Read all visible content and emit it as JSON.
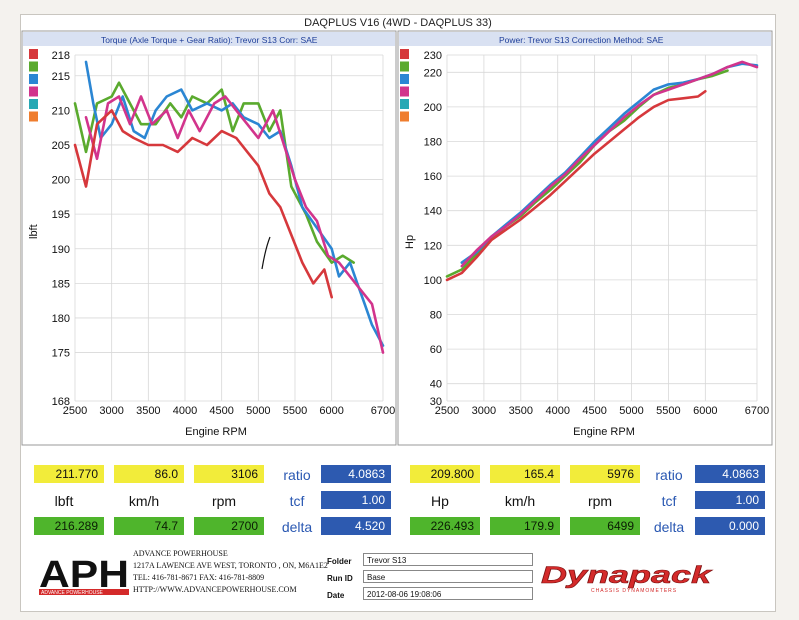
{
  "page_title": "DAQPLUS V16 (4WD - DAQPLUS 33)",
  "colors": {
    "run1": "#d6383c",
    "run2": "#5aaa2e",
    "run3": "#2b86d3",
    "run4": "#d2348c",
    "run5": "#27a8b4",
    "run6": "#ef7d2e"
  },
  "chart_data": [
    {
      "type": "line",
      "title": "Torque (Axle Torque + Gear Ratio): Trevor S13     Corr: SAE",
      "xlabel": "Engine RPM",
      "ylabel": "lbft",
      "xlim": [
        2500,
        6700
      ],
      "ylim": [
        168,
        218
      ],
      "x_ticks": [
        2500,
        3000,
        3500,
        4000,
        4500,
        5000,
        5500,
        6000,
        6700
      ],
      "y_ticks": [
        168,
        175,
        180,
        185,
        190,
        195,
        200,
        205,
        210,
        215,
        218
      ],
      "grid": true,
      "legend": "left swatches",
      "series": [
        {
          "color": "#5aaa2e",
          "points": [
            [
              2500,
              211
            ],
            [
              2650,
              204
            ],
            [
              2800,
              211
            ],
            [
              3000,
              212
            ],
            [
              3100,
              214
            ],
            [
              3200,
              212
            ],
            [
              3400,
              208
            ],
            [
              3600,
              208
            ],
            [
              3800,
              211
            ],
            [
              3950,
              209
            ],
            [
              4100,
              212
            ],
            [
              4300,
              211
            ],
            [
              4500,
              213
            ],
            [
              4650,
              207
            ],
            [
              4800,
              211
            ],
            [
              5000,
              211
            ],
            [
              5150,
              207
            ],
            [
              5300,
              210
            ],
            [
              5450,
              199
            ],
            [
              5650,
              195
            ],
            [
              5800,
              191
            ],
            [
              6000,
              188
            ],
            [
              6150,
              189
            ],
            [
              6300,
              188
            ]
          ]
        },
        {
          "color": "#2b86d3",
          "points": [
            [
              2650,
              217
            ],
            [
              2750,
              211
            ],
            [
              2850,
              206
            ],
            [
              3000,
              208
            ],
            [
              3150,
              212
            ],
            [
              3300,
              207
            ],
            [
              3450,
              206
            ],
            [
              3600,
              210
            ],
            [
              3750,
              212
            ],
            [
              3950,
              213
            ],
            [
              4100,
              210
            ],
            [
              4300,
              211
            ],
            [
              4500,
              210
            ],
            [
              4650,
              211
            ],
            [
              4800,
              209
            ],
            [
              5000,
              208
            ],
            [
              5150,
              206
            ],
            [
              5300,
              207
            ],
            [
              5450,
              202
            ],
            [
              5600,
              196
            ],
            [
              5800,
              193
            ],
            [
              6000,
              190
            ],
            [
              6100,
              186
            ],
            [
              6250,
              188
            ],
            [
              6350,
              185
            ],
            [
              6450,
              182
            ],
            [
              6550,
              179
            ],
            [
              6700,
              176
            ]
          ]
        },
        {
          "color": "#d2348c",
          "points": [
            [
              2650,
              209
            ],
            [
              2800,
              203
            ],
            [
              2950,
              211
            ],
            [
              3100,
              212
            ],
            [
              3250,
              208
            ],
            [
              3400,
              212
            ],
            [
              3550,
              208
            ],
            [
              3750,
              210
            ],
            [
              3900,
              206
            ],
            [
              4050,
              210
            ],
            [
              4200,
              207
            ],
            [
              4400,
              211
            ],
            [
              4550,
              212
            ],
            [
              4700,
              210
            ],
            [
              4850,
              208
            ],
            [
              5000,
              206
            ],
            [
              5200,
              210
            ],
            [
              5350,
              205
            ],
            [
              5500,
              200
            ],
            [
              5650,
              196
            ],
            [
              5800,
              194
            ],
            [
              5950,
              189
            ],
            [
              6100,
              188
            ],
            [
              6250,
              186
            ],
            [
              6400,
              184
            ],
            [
              6550,
              182
            ],
            [
              6700,
              175
            ]
          ]
        },
        {
          "color": "#d6383c",
          "points": [
            [
              2500,
              205
            ],
            [
              2650,
              199
            ],
            [
              2800,
              208
            ],
            [
              3000,
              210
            ],
            [
              3150,
              207
            ],
            [
              3300,
              206
            ],
            [
              3500,
              205
            ],
            [
              3700,
              205
            ],
            [
              3900,
              204
            ],
            [
              4100,
              206
            ],
            [
              4300,
              205
            ],
            [
              4500,
              207
            ],
            [
              4700,
              206
            ],
            [
              4850,
              204
            ],
            [
              5000,
              202
            ],
            [
              5150,
              198
            ],
            [
              5300,
              196
            ],
            [
              5450,
              192
            ],
            [
              5600,
              188
            ],
            [
              5750,
              185
            ],
            [
              5900,
              187
            ],
            [
              6000,
              183
            ]
          ]
        }
      ]
    },
    {
      "type": "line",
      "title": "Power: Trevor S13     Correction Method: SAE",
      "xlabel": "Engine RPM",
      "ylabel": "Hp",
      "xlim": [
        2500,
        6700
      ],
      "ylim": [
        30,
        230
      ],
      "x_ticks": [
        2500,
        3000,
        3500,
        4000,
        4500,
        5000,
        5500,
        6000,
        6700
      ],
      "y_ticks": [
        30,
        40,
        60,
        80,
        100,
        120,
        140,
        160,
        180,
        200,
        220,
        230
      ],
      "grid": true,
      "legend": "left swatches",
      "series": [
        {
          "color": "#5aaa2e",
          "points": [
            [
              2500,
              102
            ],
            [
              2700,
              106
            ],
            [
              2900,
              115
            ],
            [
              3100,
              124
            ],
            [
              3300,
              131
            ],
            [
              3500,
              137
            ],
            [
              3700,
              145
            ],
            [
              3900,
              152
            ],
            [
              4100,
              160
            ],
            [
              4300,
              168
            ],
            [
              4500,
              178
            ],
            [
              4700,
              186
            ],
            [
              4900,
              192
            ],
            [
              5100,
              200
            ],
            [
              5300,
              207
            ],
            [
              5500,
              211
            ],
            [
              5700,
              213
            ],
            [
              5900,
              216
            ],
            [
              6100,
              218
            ],
            [
              6300,
              221
            ]
          ]
        },
        {
          "color": "#2b86d3",
          "points": [
            [
              2700,
              110
            ],
            [
              2900,
              116
            ],
            [
              3100,
              125
            ],
            [
              3300,
              132
            ],
            [
              3500,
              139
            ],
            [
              3700,
              147
            ],
            [
              3900,
              155
            ],
            [
              4100,
              162
            ],
            [
              4300,
              171
            ],
            [
              4500,
              180
            ],
            [
              4700,
              188
            ],
            [
              4900,
              196
            ],
            [
              5100,
              203
            ],
            [
              5300,
              210
            ],
            [
              5500,
              213
            ],
            [
              5700,
              214
            ],
            [
              5900,
              216
            ],
            [
              6100,
              219
            ],
            [
              6300,
              223
            ],
            [
              6500,
              225
            ],
            [
              6700,
              224
            ]
          ]
        },
        {
          "color": "#d2348c",
          "points": [
            [
              2700,
              108
            ],
            [
              2900,
              117
            ],
            [
              3100,
              125
            ],
            [
              3300,
              131
            ],
            [
              3500,
              138
            ],
            [
              3700,
              146
            ],
            [
              3900,
              154
            ],
            [
              4100,
              161
            ],
            [
              4300,
              170
            ],
            [
              4500,
              178
            ],
            [
              4700,
              186
            ],
            [
              4900,
              194
            ],
            [
              5100,
              201
            ],
            [
              5300,
              207
            ],
            [
              5500,
              210
            ],
            [
              5700,
              213
            ],
            [
              5900,
              216
            ],
            [
              6100,
              219
            ],
            [
              6300,
              223
            ],
            [
              6500,
              226
            ],
            [
              6700,
              223
            ]
          ]
        },
        {
          "color": "#d6383c",
          "points": [
            [
              2500,
              100
            ],
            [
              2700,
              104
            ],
            [
              2900,
              113
            ],
            [
              3100,
              123
            ],
            [
              3300,
              129
            ],
            [
              3500,
              135
            ],
            [
              3700,
              142
            ],
            [
              3900,
              149
            ],
            [
              4100,
              157
            ],
            [
              4300,
              165
            ],
            [
              4500,
              173
            ],
            [
              4700,
              180
            ],
            [
              4900,
              187
            ],
            [
              5100,
              194
            ],
            [
              5300,
              200
            ],
            [
              5500,
              204
            ],
            [
              5700,
              205
            ],
            [
              5900,
              206
            ],
            [
              6000,
              209
            ]
          ]
        }
      ]
    }
  ],
  "readouts": {
    "left": {
      "row1": [
        "211.770",
        "86.0",
        "3106"
      ],
      "labels": [
        "lbft",
        "km/h",
        "rpm"
      ],
      "row3": [
        "216.289",
        "74.7",
        "2700"
      ],
      "ratio_label": "ratio",
      "ratio": "4.0863",
      "tcf_label": "tcf",
      "tcf": "1.00",
      "delta_label": "delta",
      "delta": "4.520"
    },
    "right": {
      "row1": [
        "209.800",
        "165.4",
        "5976"
      ],
      "labels": [
        "Hp",
        "km/h",
        "rpm"
      ],
      "row3": [
        "226.493",
        "179.9",
        "6499"
      ],
      "ratio_label": "ratio",
      "ratio": "4.0863",
      "tcf_label": "tcf",
      "tcf": "1.00",
      "delta_label": "delta",
      "delta": "0.000"
    }
  },
  "footer": {
    "logo": "APH",
    "logo_sub": "ADVANCE POWERHOUSE",
    "company": "ADVANCE POWERHOUSE",
    "address": "1217A LAWENCE AVE WEST, TORONTO , ON, M6A1E2",
    "phone": "TEL: 416-781-8671  FAX: 416-781-8809",
    "web": "HTTP://WWW.ADVANCEPOWERHOUSE.COM",
    "folder_label": "Folder",
    "folder": "Trevor S13",
    "runid_label": "Run ID",
    "runid": "Base",
    "date_label": "Date",
    "date": "2012-08-06 19:08:06",
    "brand": "Dynapack",
    "brand_sub": "CHASSIS DYNAMOMETERS"
  }
}
